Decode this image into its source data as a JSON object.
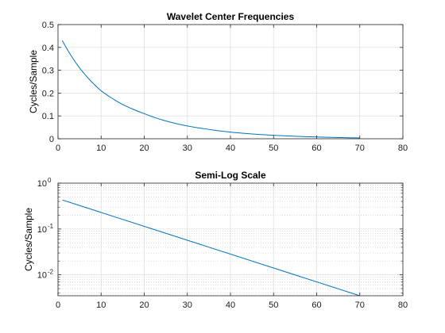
{
  "chart_data": [
    {
      "type": "line",
      "title": "Wavelet Center Frequencies",
      "xlabel": "",
      "ylabel": "Cycles/Sample",
      "xlim": [
        0,
        80
      ],
      "ylim": [
        0,
        0.5
      ],
      "yscale": "linear",
      "grid": true,
      "x_ticks": [
        "0",
        "10",
        "20",
        "30",
        "40",
        "50",
        "60",
        "70",
        "80"
      ],
      "y_ticks": [
        "0",
        "0.1",
        "0.2",
        "0.3",
        "0.4",
        "0.5"
      ],
      "line_color": "#0072bd",
      "series": [
        {
          "x": [
            1,
            5,
            10,
            15,
            20,
            25,
            30,
            35,
            40,
            45,
            50,
            55,
            60,
            65,
            70
          ],
          "values": [
            0.43,
            0.31,
            0.21,
            0.15,
            0.11,
            0.078,
            0.056,
            0.041,
            0.029,
            0.021,
            0.015,
            0.011,
            0.0076,
            0.0054,
            0.0035
          ]
        }
      ]
    },
    {
      "type": "line",
      "title": "Semi-Log Scale",
      "xlabel": "",
      "ylabel": "Cycles/Sample",
      "xlim": [
        0,
        80
      ],
      "ylim": [
        0.0035,
        1
      ],
      "yscale": "log",
      "grid": true,
      "minor_grid": true,
      "x_ticks": [
        "0",
        "10",
        "20",
        "30",
        "40",
        "50",
        "60",
        "70",
        "80"
      ],
      "y_ticks": [
        {
          "base": "10",
          "exp": "0"
        },
        {
          "base": "10",
          "exp": "-1"
        },
        {
          "base": "10",
          "exp": "-2"
        }
      ],
      "line_color": "#0072bd",
      "series": [
        {
          "x": [
            1,
            70
          ],
          "values": [
            0.43,
            0.0035
          ]
        }
      ]
    }
  ]
}
